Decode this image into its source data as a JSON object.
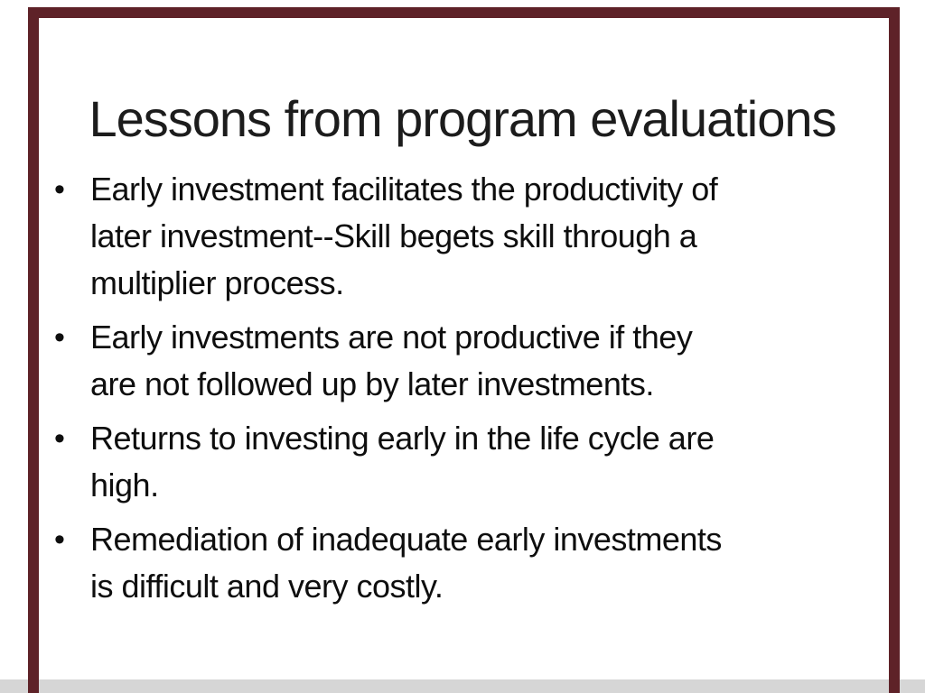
{
  "slide": {
    "title": "Lessons from program evaluations",
    "bullet_char": "•",
    "bullets": [
      "Early investment facilitates the productivity of\nlater investment--Skill begets skill through a\nmultiplier process.",
      "Early investments are not productive if they\nare not followed up by later investments.",
      "Returns to investing early in the life cycle are\nhigh.",
      "Remediation of inadequate early investments\nis difficult and very costly."
    ],
    "colors": {
      "background": "#ffffff",
      "frame": "#5e2228",
      "bottom_bar": "#d6d6d6",
      "title_text": "#1c1c1c",
      "body_text": "#0e0e0e"
    }
  }
}
